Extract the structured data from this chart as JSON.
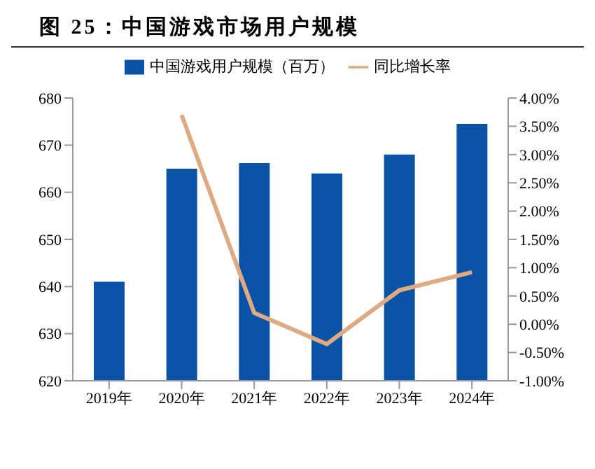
{
  "chart_data": {
    "type": "bar",
    "title": "图 25：中国游戏市场用户规模",
    "categories": [
      "2019年",
      "2020年",
      "2021年",
      "2022年",
      "2023年",
      "2024年"
    ],
    "series": [
      {
        "name": "中国游戏用户规模（百万）",
        "color": "#0b53a6",
        "values": [
          641,
          665,
          666.2,
          664,
          668,
          674.5
        ]
      },
      {
        "name": "同比增长率",
        "type": "line",
        "axis": "y2",
        "color": "#deaa82",
        "values": [
          null,
          3.7,
          0.2,
          -0.35,
          0.6,
          0.92
        ]
      }
    ],
    "ylim": [
      620,
      680
    ],
    "yticks": [
      620,
      630,
      640,
      650,
      660,
      670,
      680
    ],
    "y2lim": [
      -1,
      4
    ],
    "y2ticks": [
      {
        "value": -1,
        "label": "-1.00%"
      },
      {
        "value": -0.5,
        "label": "-0.50%"
      },
      {
        "value": 0,
        "label": "0.00%"
      },
      {
        "value": 0.5,
        "label": "0.50%"
      },
      {
        "value": 1,
        "label": "1.00%"
      },
      {
        "value": 1.5,
        "label": "1.50%"
      },
      {
        "value": 2,
        "label": "2.00%"
      },
      {
        "value": 2.5,
        "label": "2.50%"
      },
      {
        "value": 3,
        "label": "3.00%"
      },
      {
        "value": 3.5,
        "label": "3.50%"
      },
      {
        "value": 4,
        "label": "4.00%"
      }
    ],
    "legend": "top",
    "grid": false,
    "marker": "none"
  }
}
